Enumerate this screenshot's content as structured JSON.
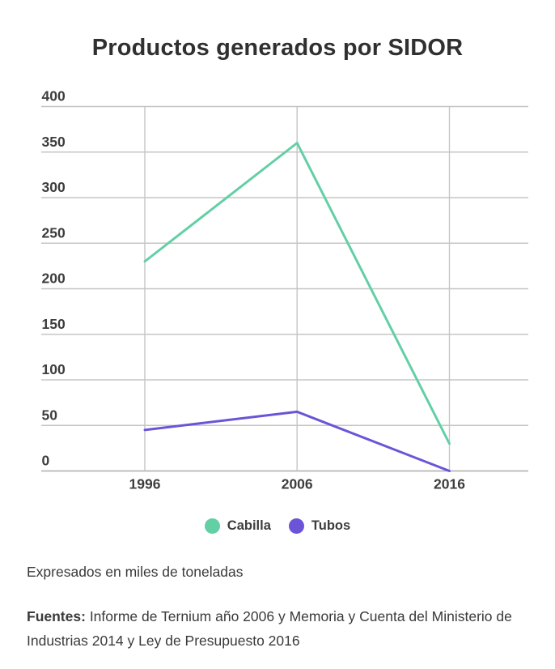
{
  "title": "Productos generados por SIDOR",
  "chart_data": {
    "type": "line",
    "title": "Productos generados por SIDOR",
    "categories": [
      "1996",
      "2006",
      "2016"
    ],
    "series": [
      {
        "name": "Cabilla",
        "color": "#63cfa5",
        "values": [
          230,
          360,
          30
        ]
      },
      {
        "name": "Tubos",
        "color": "#6b54d8",
        "values": [
          45,
          65,
          0
        ]
      }
    ],
    "xlabel": "",
    "ylabel": "",
    "ylim": [
      0,
      400
    ],
    "yticks": [
      0,
      50,
      100,
      150,
      200,
      250,
      300,
      350,
      400
    ],
    "grid": true,
    "legend_position": "bottom"
  },
  "notes": {
    "units_note": "Expresados en miles de toneladas",
    "sources_label": "Fuentes:",
    "sources_text": "Informe de Ternium año 2006 y Memoria y Cuenta del Ministerio de Industrias 2014 y Ley de Presupuesto 2016"
  },
  "colors": {
    "background": "#ffffff",
    "title_text": "#303030",
    "axis_text": "#3d3d3d",
    "grid": "#c5c5c5",
    "zero_line": "#ababab"
  }
}
